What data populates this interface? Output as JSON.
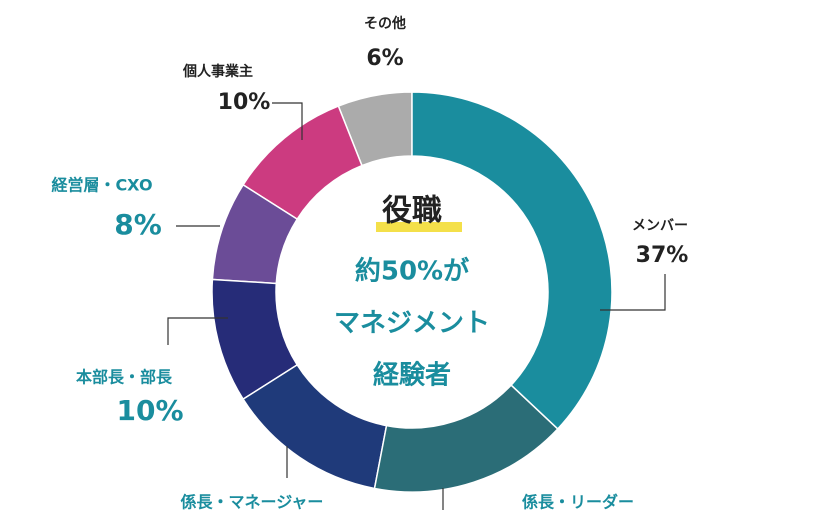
{
  "chart_data": {
    "type": "donut",
    "center_title": "役職",
    "center_lines": [
      "約50%が",
      "マネジメント",
      "経験者"
    ],
    "categories": [
      "メンバー",
      "係長・リーダー",
      "係長・マネージャー",
      "本部長・部長",
      "経営層・CXO",
      "個人事業主",
      "その他"
    ],
    "values": [
      37,
      16,
      13,
      10,
      8,
      10,
      6
    ],
    "value_labels": [
      "37%",
      null,
      null,
      "10%",
      "8%",
      "10%",
      "6%"
    ],
    "colors": [
      "#1a8d9e",
      "#2b6d77",
      "#1f3a7a",
      "#262c78",
      "#6b4c97",
      "#cc3b80",
      "#ababab"
    ]
  }
}
